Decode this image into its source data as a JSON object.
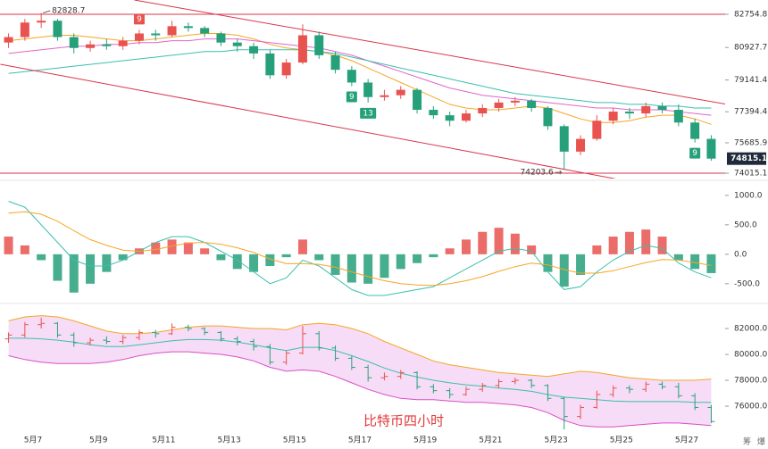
{
  "chart_data": [
    {
      "type": "candlestick",
      "up_color": "#e8534f",
      "down_color": "#26a07a",
      "open": [
        81200,
        81500,
        82300,
        82400,
        81500,
        80900,
        81100,
        81000,
        81300,
        81700,
        81600,
        82100,
        82000,
        81700,
        81200,
        81000,
        80600,
        79400,
        80100,
        81600,
        80500,
        79700,
        79000,
        78200,
        78300,
        78600,
        77500,
        77200,
        76900,
        77300,
        77600,
        77900,
        78000,
        77600,
        76600,
        75200,
        75900,
        76900,
        77400,
        77300,
        77700,
        77500,
        76800,
        75900
      ],
      "high": [
        81700,
        82500,
        82828.7,
        82500,
        81700,
        81300,
        81400,
        81500,
        81900,
        81900,
        82400,
        82300,
        82100,
        81800,
        81400,
        81200,
        80800,
        80300,
        82200,
        81800,
        80700,
        79900,
        79200,
        78600,
        78800,
        78700,
        77700,
        77400,
        77500,
        77800,
        78100,
        78200,
        78100,
        77700,
        76700,
        76100,
        77200,
        77600,
        77600,
        77900,
        77900,
        77800,
        77000,
        76100
      ],
      "low": [
        80900,
        81300,
        82000,
        81300,
        80600,
        80700,
        80800,
        80800,
        81100,
        81300,
        81500,
        81800,
        81500,
        81000,
        80700,
        80300,
        79200,
        79200,
        80000,
        80300,
        79500,
        78800,
        77900,
        78000,
        78100,
        77300,
        77000,
        76600,
        76800,
        77100,
        77400,
        77700,
        77400,
        76400,
        74203.6,
        75000,
        75800,
        76700,
        77000,
        77100,
        77300,
        76600,
        75700,
        74700
      ],
      "close": [
        81500,
        82300,
        82400,
        81500,
        80900,
        81100,
        81000,
        81300,
        81700,
        81600,
        82100,
        82000,
        81700,
        81200,
        81000,
        80600,
        79400,
        80100,
        81600,
        80500,
        79700,
        79000,
        78200,
        78300,
        78600,
        77500,
        77200,
        76900,
        77300,
        77600,
        77900,
        78000,
        77600,
        76600,
        75200,
        75900,
        76900,
        77400,
        77300,
        77700,
        77500,
        76800,
        75900,
        74815.1
      ],
      "series": [
        {
          "color": "#f5a623",
          "values": [
            81300,
            81400,
            81500,
            81600,
            81600,
            81500,
            81400,
            81300,
            81300,
            81400,
            81500,
            81600,
            81700,
            81700,
            81600,
            81400,
            81100,
            80900,
            80800,
            80700,
            80500,
            80200,
            79800,
            79400,
            79000,
            78600,
            78200,
            77800,
            77600,
            77500,
            77500,
            77600,
            77700,
            77600,
            77300,
            77000,
            76800,
            76800,
            76900,
            77100,
            77200,
            77200,
            77000,
            76700
          ]
        },
        {
          "color": "#e066c8",
          "values": [
            80600,
            80700,
            80800,
            80900,
            81000,
            81000,
            81100,
            81100,
            81200,
            81200,
            81300,
            81300,
            81400,
            81400,
            81400,
            81300,
            81200,
            81100,
            81000,
            80900,
            80700,
            80500,
            80200,
            79900,
            79600,
            79300,
            79000,
            78700,
            78500,
            78300,
            78200,
            78100,
            78000,
            77900,
            77800,
            77700,
            77600,
            77600,
            77500,
            77500,
            77500,
            77400,
            77300,
            77200
          ]
        },
        {
          "color": "#3bbfb0",
          "values": [
            79500,
            79600,
            79700,
            79800,
            79900,
            80000,
            80100,
            80200,
            80300,
            80400,
            80500,
            80600,
            80700,
            80700,
            80800,
            80800,
            80800,
            80800,
            80800,
            80700,
            80600,
            80400,
            80200,
            80000,
            79800,
            79600,
            79400,
            79200,
            79000,
            78800,
            78600,
            78400,
            78300,
            78200,
            78100,
            78000,
            77900,
            77900,
            77800,
            77800,
            77700,
            77700,
            77600,
            77600
          ]
        }
      ],
      "ylim": [
        73720,
        83540
      ],
      "yticks": [
        82754.8,
        80927.7,
        79141.4,
        77394.4,
        75685.9,
        74015.1
      ],
      "trendlines": [
        {
          "color": "#d9364a",
          "from": [
            7.7,
            83540
          ],
          "to": [
            44.3,
            77747
          ]
        },
        {
          "color": "#d9364a",
          "from": [
            -0.5,
            80005
          ],
          "to": [
            38.8,
            73425
          ]
        }
      ],
      "markers": [
        {
          "label": "9",
          "candle": 8,
          "color": "#e8534f",
          "side": "above"
        },
        {
          "label": "9",
          "candle": 21,
          "color": "#26a07a",
          "side": "below"
        },
        {
          "label": "13",
          "candle": 22,
          "color": "#26a07a",
          "side": "below"
        },
        {
          "label": "9",
          "candle": 42,
          "color": "#26a07a",
          "side": "below"
        }
      ]
    },
    {
      "type": "macd",
      "histogram": [
        300,
        150,
        -100,
        -450,
        -650,
        -500,
        -300,
        -100,
        100,
        200,
        250,
        200,
        100,
        -100,
        -250,
        -300,
        -200,
        -50,
        250,
        -100,
        -350,
        -480,
        -500,
        -400,
        -250,
        -150,
        -50,
        100,
        250,
        380,
        450,
        350,
        150,
        -300,
        -550,
        -350,
        150,
        300,
        380,
        420,
        300,
        -100,
        -250,
        -320
      ],
      "series": [
        {
          "color": "#3bbfb0",
          "values": [
            900,
            800,
            500,
            200,
            -100,
            -200,
            -200,
            -100,
            50,
            200,
            300,
            300,
            200,
            50,
            -100,
            -300,
            -500,
            -400,
            -100,
            -200,
            -400,
            -600,
            -700,
            -700,
            -650,
            -600,
            -550,
            -400,
            -250,
            -100,
            50,
            100,
            50,
            -300,
            -600,
            -550,
            -300,
            -100,
            50,
            150,
            100,
            -150,
            -300,
            -400
          ]
        },
        {
          "color": "#f5a623",
          "values": [
            700,
            720,
            680,
            560,
            400,
            250,
            150,
            70,
            50,
            80,
            140,
            190,
            200,
            170,
            110,
            30,
            -80,
            -160,
            -160,
            -170,
            -220,
            -300,
            -380,
            -450,
            -500,
            -520,
            -530,
            -500,
            -450,
            -380,
            -290,
            -210,
            -150,
            -180,
            -260,
            -320,
            -320,
            -280,
            -210,
            -140,
            -90,
            -100,
            -140,
            -190
          ]
        }
      ],
      "ylim": [
        -760,
        1210
      ],
      "yticks": [
        {
          "value": 1000,
          "label": "1000.0"
        },
        {
          "value": 500,
          "label": "500.0"
        },
        {
          "value": 0,
          "label": "0.0"
        },
        {
          "value": -500,
          "label": "-500.0"
        }
      ]
    },
    {
      "type": "bollinger",
      "title": "比特币四小时",
      "band_color": "#f6dcf6",
      "upper": {
        "color": "#f5a623",
        "values": [
          82600,
          82900,
          83000,
          82900,
          82600,
          82200,
          81800,
          81600,
          81600,
          81700,
          81900,
          82100,
          82200,
          82200,
          82100,
          82000,
          82000,
          81900,
          82300,
          82400,
          82300,
          82000,
          81600,
          81000,
          80500,
          80000,
          79500,
          79200,
          79000,
          78800,
          78600,
          78500,
          78400,
          78300,
          78500,
          78700,
          78600,
          78400,
          78200,
          78100,
          78000,
          78000,
          78000,
          78100
        ]
      },
      "middle": {
        "color": "#3bbfb0",
        "values": [
          81250,
          81250,
          81200,
          81100,
          80950,
          80750,
          80600,
          80600,
          80750,
          80900,
          81050,
          81150,
          81150,
          81100,
          80950,
          80750,
          80500,
          80300,
          80550,
          80550,
          80300,
          79900,
          79450,
          78950,
          78550,
          78250,
          78000,
          77800,
          77650,
          77550,
          77400,
          77300,
          77150,
          76900,
          76700,
          76600,
          76500,
          76400,
          76350,
          76350,
          76350,
          76350,
          76300,
          76300
        ]
      },
      "lower": {
        "color": "#d94fc8",
        "values": [
          79900,
          79600,
          79400,
          79300,
          79300,
          79300,
          79400,
          79600,
          79900,
          80100,
          80200,
          80200,
          80100,
          80000,
          79800,
          79500,
          79000,
          78700,
          78800,
          78700,
          78300,
          77800,
          77300,
          76900,
          76600,
          76500,
          76500,
          76400,
          76300,
          76300,
          76200,
          76100,
          75900,
          75500,
          74900,
          74500,
          74400,
          74400,
          74500,
          74600,
          74700,
          74700,
          74600,
          74500
        ]
      },
      "ylim": [
        74070,
        83590
      ],
      "yticks": [
        {
          "value": 82000,
          "label": "82000.0"
        },
        {
          "value": 80000,
          "label": "80000.0"
        },
        {
          "value": 78000,
          "label": "78000.0"
        },
        {
          "value": 76000,
          "label": "76000.0"
        }
      ],
      "categories": [
        null,
        null,
        "5月7",
        null,
        null,
        null,
        "5月9",
        null,
        null,
        null,
        "5月11",
        null,
        null,
        null,
        "5月13",
        null,
        null,
        null,
        "5月15",
        null,
        null,
        null,
        "5月17",
        null,
        null,
        null,
        "5月19",
        null,
        null,
        null,
        "5月21",
        null,
        null,
        null,
        "5月23",
        null,
        null,
        null,
        "5月25",
        null,
        null,
        null,
        "5月27",
        null
      ],
      "corner_labels": [
        "筹",
        "爆"
      ]
    }
  ]
}
